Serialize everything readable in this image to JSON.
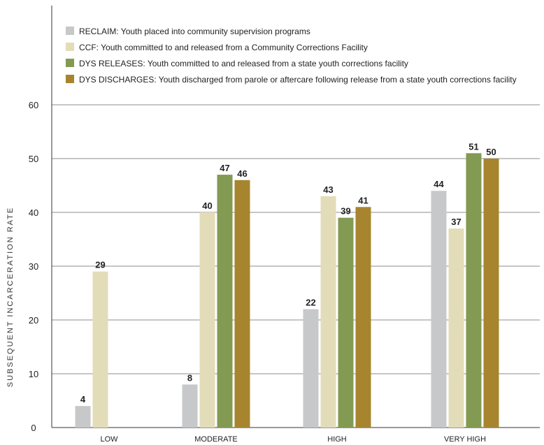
{
  "chart_data": {
    "type": "bar",
    "ylabel": "SUBSEQUENT INCARCERATION RATE",
    "xlabel": "",
    "ylim": [
      0,
      60
    ],
    "yticks": [
      0,
      10,
      20,
      30,
      40,
      50,
      60
    ],
    "grid": "horizontal",
    "legend_position": "top-left",
    "categories": [
      "LOW",
      "MODERATE",
      "HIGH",
      "VERY HIGH"
    ],
    "series": [
      {
        "name": "RECLAIM: Youth placed into community supervision programs",
        "color": "#c7c8ca",
        "values": [
          4,
          8,
          22,
          44
        ]
      },
      {
        "name": "CCF: Youth committed to and released from a Community Corrections Facility",
        "color": "#e3dcb8",
        "values": [
          29,
          40,
          43,
          37
        ]
      },
      {
        "name": "DYS RELEASES: Youth committed to and released from a state youth corrections facility",
        "color": "#829a52",
        "values": [
          null,
          47,
          39,
          51
        ]
      },
      {
        "name": "DYS DISCHARGES: Youth discharged from parole or aftercare following release from a state youth corrections facility",
        "color": "#a7852f",
        "values": [
          null,
          46,
          41,
          50
        ]
      }
    ]
  }
}
